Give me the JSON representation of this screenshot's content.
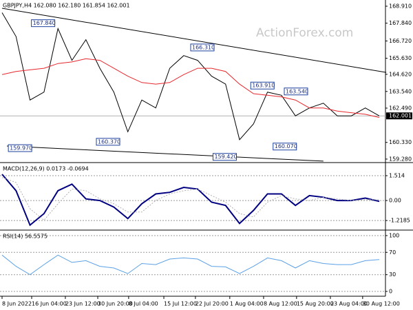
{
  "chart_data": [
    {
      "type": "line",
      "title": "GBPJPY,H4 162.080 162.180 161.854 162.001",
      "watermark": "ActionForex.com",
      "xlim": [
        0,
        27
      ],
      "ylim": [
        159.06,
        169.3
      ],
      "yticks": [
        {
          "value": 168.91,
          "label": "168.910"
        },
        {
          "value": 167.84,
          "label": "167.840"
        },
        {
          "value": 166.72,
          "label": "166.720"
        },
        {
          "value": 165.63,
          "label": "165.630"
        },
        {
          "value": 164.62,
          "label": "164.620"
        },
        {
          "value": 163.54,
          "label": "163.540"
        },
        {
          "value": 162.49,
          "label": "162.490"
        },
        {
          "value": 160.33,
          "label": "160.330"
        },
        {
          "value": 159.28,
          "label": "159.280"
        }
      ],
      "current": {
        "value": 162.001,
        "label": "162.001"
      },
      "series": [
        {
          "name": "GBPJPY",
          "color": "#000000",
          "values": [
            168.5,
            167.0,
            163.0,
            163.5,
            167.5,
            165.5,
            166.8,
            165.0,
            163.5,
            161.0,
            163.0,
            162.5,
            165.0,
            165.8,
            165.5,
            164.5,
            164.0,
            160.5,
            161.5,
            163.5,
            163.3,
            162.0,
            162.5,
            162.8,
            162.0,
            162.0,
            162.5,
            162.001
          ]
        },
        {
          "name": "MA",
          "color": "#e8262b",
          "values": [
            164.6,
            164.8,
            164.9,
            165.0,
            165.3,
            165.4,
            165.6,
            165.5,
            165.0,
            164.5,
            164.1,
            164.0,
            164.1,
            164.6,
            165.0,
            165.0,
            164.8,
            164.0,
            163.4,
            163.3,
            163.2,
            163.0,
            162.5,
            162.5,
            162.3,
            162.2,
            162.1,
            161.9
          ]
        }
      ],
      "trendlines": [
        {
          "x": [
            0,
            27.5
          ],
          "values": [
            168.78,
            164.74
          ]
        },
        {
          "x": [
            0.35,
            23
          ],
          "values": [
            160.1,
            159.15
          ]
        }
      ],
      "annotations": [
        {
          "label": "167.840",
          "value": 167.84,
          "x": 2.1
        },
        {
          "label": "159.970",
          "value": 159.97,
          "x": 0.45
        },
        {
          "label": "160.370",
          "value": 160.37,
          "x": 6.75
        },
        {
          "label": "166.310",
          "value": 166.31,
          "x": 13.5
        },
        {
          "label": "159.420",
          "value": 159.42,
          "x": 15.1
        },
        {
          "label": "163.910",
          "value": 163.91,
          "x": 17.8
        },
        {
          "label": "163.540",
          "value": 163.54,
          "x": 20.2
        },
        {
          "label": "160.070",
          "value": 160.07,
          "x": 19.4
        }
      ]
    },
    {
      "type": "line",
      "title": "MACD(12,26,9) 0.0173 -0.0694",
      "xlim": [
        0,
        27
      ],
      "ylim": [
        -1.76,
        2.27
      ],
      "grid": true,
      "yticks": [
        1.514,
        {
          "value": 0,
          "label": "0.00"
        },
        -1.2185
      ],
      "series": [
        {
          "name": "MACD",
          "color": "#000080",
          "values": [
            1.6,
            0.6,
            -1.5,
            -0.8,
            0.6,
            1.0,
            0.1,
            0.0,
            -0.4,
            -1.1,
            -0.2,
            0.4,
            0.5,
            0.8,
            0.7,
            -0.1,
            -0.3,
            -1.4,
            -0.6,
            0.4,
            0.4,
            -0.3,
            0.3,
            0.2,
            0.0,
            0.0,
            0.15,
            -0.05
          ]
        },
        {
          "name": "Signal",
          "color": "#b0b0b0",
          "values": [
            1.4,
            1.1,
            -0.5,
            -1.2,
            -0.2,
            0.7,
            0.6,
            0.1,
            -0.2,
            -0.7,
            -0.7,
            0.0,
            0.4,
            0.6,
            0.7,
            0.3,
            -0.1,
            -0.8,
            -1.0,
            -0.1,
            0.3,
            0.1,
            0.0,
            0.2,
            0.1,
            0.0,
            0.05,
            0.05
          ]
        }
      ]
    },
    {
      "type": "line",
      "title": "RSI(14) 56.5575",
      "xlim": [
        0,
        27
      ],
      "ylim": [
        -8.6,
        108.6
      ],
      "grid": true,
      "yticks": [
        100,
        70,
        30,
        0
      ],
      "series": [
        {
          "name": "RSI",
          "color": "#5aa0e6",
          "values": [
            65,
            45,
            30,
            48,
            65,
            52,
            55,
            45,
            42,
            32,
            50,
            48,
            58,
            60,
            58,
            45,
            44,
            32,
            45,
            60,
            55,
            42,
            55,
            50,
            48,
            48,
            55,
            57
          ]
        }
      ],
      "xticks": [
        {
          "value": 0,
          "label": "8 Jun 2022"
        },
        {
          "value": 2.12,
          "label": "16 Jun 04:00"
        },
        {
          "value": 4.53,
          "label": "23 Jun 12:00"
        },
        {
          "value": 6.85,
          "label": "30 Jun 20:00"
        },
        {
          "value": 9.06,
          "label": "8 Jul 04:00"
        },
        {
          "value": 11.58,
          "label": "15 Jul 12:00"
        },
        {
          "value": 13.84,
          "label": "22 Jul 20:00"
        },
        {
          "value": 16.3,
          "label": "1 Aug 04:00"
        },
        {
          "value": 18.72,
          "label": "8 Aug 12:00"
        },
        {
          "value": 21.08,
          "label": "15 Aug 20:00"
        },
        {
          "value": 23.5,
          "label": "23 Aug 04:00"
        },
        {
          "value": 25.81,
          "label": "30 Aug 12:00"
        }
      ]
    }
  ]
}
